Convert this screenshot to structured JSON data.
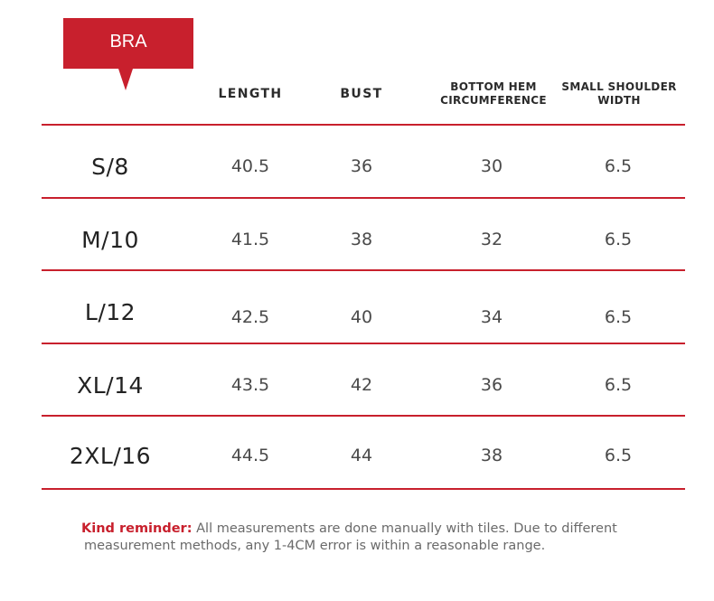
{
  "tag": {
    "label": "BRA"
  },
  "headers": {
    "length": "LENGTH",
    "bust": "BUST",
    "hem_line1": "BOTTOM HEM",
    "hem_line2": "CIRCUMFERENCE",
    "shoulder_line1": "SMALL SHOULDER",
    "shoulder_line2": "WIDTH"
  },
  "rows": [
    {
      "size": "S/8",
      "length": "40.5",
      "bust": "36",
      "hem": "30",
      "shoulder": "6.5"
    },
    {
      "size": "M/10",
      "length": "41.5",
      "bust": "38",
      "hem": "32",
      "shoulder": "6.5"
    },
    {
      "size": "L/12",
      "length": "42.5",
      "bust": "40",
      "hem": "34",
      "shoulder": "6.5"
    },
    {
      "size": "XL/14",
      "length": "43.5",
      "bust": "42",
      "hem": "36",
      "shoulder": "6.5"
    },
    {
      "size": "2XL/16",
      "length": "44.5",
      "bust": "44",
      "hem": "38",
      "shoulder": "6.5"
    }
  ],
  "note": {
    "label": "Kind reminder:",
    "line1": " All measurements are done manually with tiles. Due to different",
    "line2": "measurement methods, any 1-4CM error is within a reasonable range."
  },
  "colors": {
    "accent": "#c8202d",
    "text": "#333333"
  }
}
